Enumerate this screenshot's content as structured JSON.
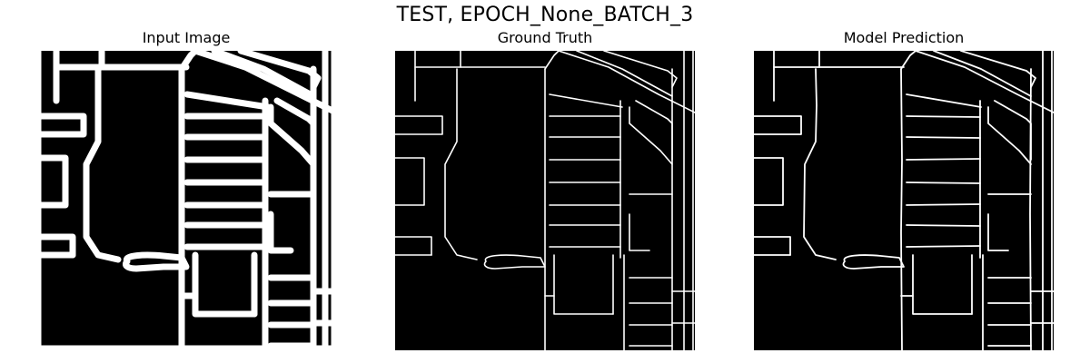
{
  "figure": {
    "suptitle": "TEST, EPOCH_None_BATCH_3"
  },
  "panels": [
    {
      "title": "Input Image",
      "kind": "thick-road-mask"
    },
    {
      "title": "Ground Truth",
      "kind": "thin-road-mask"
    },
    {
      "title": "Model Prediction",
      "kind": "thin-road-mask-noisy"
    }
  ],
  "colors": {
    "background": "#ffffff",
    "mask_background": "#000000",
    "road": "#ffffff"
  }
}
